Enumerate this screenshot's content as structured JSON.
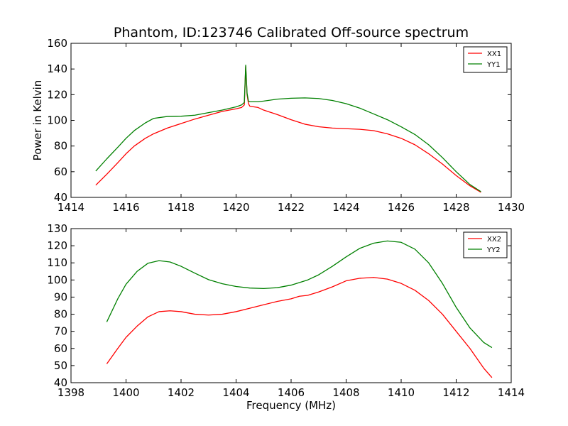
{
  "title": "Phantom, ID:123746 Calibrated Off-source spectrum",
  "chart_data": [
    {
      "type": "line",
      "title": "Phantom, ID:123746 Calibrated Off-source spectrum",
      "xlabel": "",
      "ylabel": "Power in Kelvin",
      "xlim": [
        1414,
        1430
      ],
      "ylim": [
        40,
        160
      ],
      "xticks": [
        1414,
        1416,
        1418,
        1420,
        1422,
        1424,
        1426,
        1428,
        1430
      ],
      "yticks": [
        40,
        60,
        80,
        100,
        120,
        140,
        160
      ],
      "legend_position": "top-right",
      "grid": false,
      "series": [
        {
          "name": "XX1",
          "color": "#ff0000",
          "x": [
            1414.9,
            1415.3,
            1415.7,
            1416.0,
            1416.3,
            1416.7,
            1417.0,
            1417.5,
            1418.0,
            1418.5,
            1419.0,
            1419.5,
            1420.0,
            1420.2,
            1420.3,
            1420.35,
            1420.4,
            1420.45,
            1420.5,
            1420.8,
            1421.0,
            1421.5,
            1422.0,
            1422.5,
            1423.0,
            1423.5,
            1424.0,
            1424.5,
            1425.0,
            1425.5,
            1426.0,
            1426.5,
            1427.0,
            1427.5,
            1428.0,
            1428.5,
            1428.9
          ],
          "y": [
            49.5,
            58,
            67,
            74,
            80,
            86,
            89.5,
            94,
            97.5,
            101,
            104,
            107,
            109,
            110,
            112,
            142,
            120,
            113,
            111,
            110,
            108,
            104.5,
            100.5,
            97,
            95,
            94,
            93.5,
            93,
            92,
            89.5,
            86,
            81,
            74,
            66,
            57,
            49,
            44
          ]
        },
        {
          "name": "YY1",
          "color": "#008000",
          "x": [
            1414.9,
            1415.3,
            1415.7,
            1416.0,
            1416.3,
            1416.7,
            1417.0,
            1417.5,
            1418.0,
            1418.5,
            1419.0,
            1419.5,
            1420.0,
            1420.2,
            1420.3,
            1420.35,
            1420.4,
            1420.45,
            1420.5,
            1420.8,
            1421.0,
            1421.5,
            1422.0,
            1422.5,
            1423.0,
            1423.5,
            1424.0,
            1424.5,
            1425.0,
            1425.5,
            1426.0,
            1426.5,
            1427.0,
            1427.5,
            1428.0,
            1428.5,
            1428.9
          ],
          "y": [
            60.5,
            70,
            79,
            86,
            92,
            98,
            101.5,
            103,
            103.2,
            104,
            106,
            108,
            110.5,
            112,
            114,
            143,
            121,
            115,
            114.5,
            114.5,
            115,
            116.5,
            117.2,
            117.5,
            117,
            115.5,
            113,
            109.5,
            105,
            100.5,
            95,
            89,
            81,
            71,
            60,
            50,
            44.5
          ]
        }
      ]
    },
    {
      "type": "line",
      "title": "",
      "xlabel": "Frequency (MHz)",
      "ylabel": "",
      "xlim": [
        1398,
        1414
      ],
      "ylim": [
        40,
        130
      ],
      "xticks": [
        1398,
        1400,
        1402,
        1404,
        1406,
        1408,
        1410,
        1412,
        1414
      ],
      "yticks": [
        40,
        50,
        60,
        70,
        80,
        90,
        100,
        110,
        120,
        130
      ],
      "legend_position": "top-right",
      "grid": false,
      "series": [
        {
          "name": "XX2",
          "color": "#ff0000",
          "x": [
            1399.3,
            1399.7,
            1400.0,
            1400.4,
            1400.8,
            1401.2,
            1401.6,
            1402.0,
            1402.5,
            1403.0,
            1403.5,
            1404.0,
            1404.5,
            1405.0,
            1405.5,
            1406.0,
            1406.3,
            1406.6,
            1407.0,
            1407.5,
            1408.0,
            1408.5,
            1409.0,
            1409.5,
            1410.0,
            1410.5,
            1411.0,
            1411.5,
            1412.0,
            1412.5,
            1413.0,
            1413.3
          ],
          "y": [
            51,
            60,
            66.5,
            73,
            78.5,
            81.5,
            82,
            81.5,
            80,
            79.5,
            80,
            81.5,
            83.5,
            85.5,
            87.5,
            89,
            90.5,
            91,
            93,
            96,
            99.5,
            101,
            101.5,
            100.5,
            98,
            94,
            88,
            80,
            70,
            60,
            48.5,
            43
          ]
        },
        {
          "name": "YY2",
          "color": "#008000",
          "x": [
            1399.3,
            1399.7,
            1400.0,
            1400.4,
            1400.8,
            1401.2,
            1401.6,
            1402.0,
            1402.5,
            1403.0,
            1403.5,
            1404.0,
            1404.5,
            1405.0,
            1405.5,
            1406.0,
            1406.3,
            1406.6,
            1407.0,
            1407.5,
            1408.0,
            1408.5,
            1409.0,
            1409.5,
            1410.0,
            1410.5,
            1411.0,
            1411.5,
            1412.0,
            1412.5,
            1413.0,
            1413.3
          ],
          "y": [
            75.5,
            89,
            97.5,
            105,
            109.8,
            111.3,
            110.5,
            108,
            104,
            100.2,
            97.8,
            96.2,
            95.3,
            95,
            95.5,
            97,
            98.5,
            100,
            103,
            108,
            113.5,
            118.5,
            121.5,
            122.8,
            122,
            118,
            110,
            98,
            84,
            72,
            63.5,
            60.5
          ]
        }
      ]
    }
  ]
}
